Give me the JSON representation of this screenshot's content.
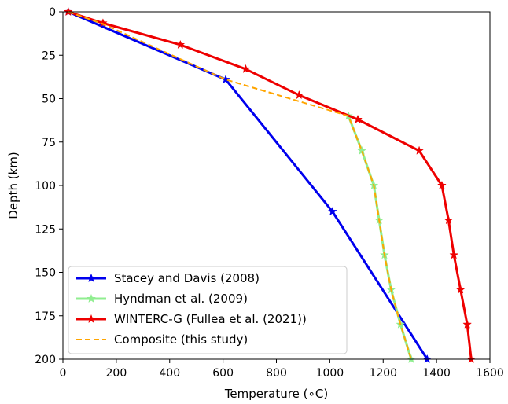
{
  "chart_data": {
    "type": "line",
    "title": "",
    "xlabel": "Temperature (∘C)",
    "ylabel": "Depth (km)",
    "xlim": [
      0,
      1600
    ],
    "ylim": [
      200,
      0
    ],
    "y_inverted": true,
    "xticks": [
      "0",
      "200",
      "400",
      "600",
      "800",
      "1000",
      "1200",
      "1400",
      "1600"
    ],
    "yticks": [
      "0",
      "25",
      "50",
      "75",
      "100",
      "125",
      "150",
      "175",
      "200"
    ],
    "grid": false,
    "legend_position": "bottom-left",
    "series": [
      {
        "name": "Stacey and Davis (2008)",
        "color": "#0000ee",
        "style": "solid",
        "marker": "star",
        "x": [
          20,
          610,
          1010,
          1365
        ],
        "y": [
          0,
          39,
          115,
          200
        ]
      },
      {
        "name": "Hyndman et al. (2009)",
        "color": "#90ee90",
        "style": "solid",
        "marker": "star",
        "x": [
          1070,
          1120,
          1165,
          1185,
          1205,
          1230,
          1265,
          1305
        ],
        "y": [
          60,
          80,
          100,
          120,
          140,
          160,
          180,
          200
        ]
      },
      {
        "name": "WINTERC-G (Fullea et al. (2021))",
        "color": "#ee0000",
        "style": "solid",
        "marker": "star",
        "x": [
          20,
          150,
          440,
          685,
          885,
          1105,
          1335,
          1420,
          1445,
          1465,
          1490,
          1515,
          1530
        ],
        "y": [
          0,
          6.5,
          19,
          33,
          48,
          62,
          80,
          100,
          120,
          140,
          160,
          180,
          200
        ]
      },
      {
        "name": "Composite (this study)",
        "color": "#ffa500",
        "style": "dashed",
        "marker": "none",
        "x": [
          20,
          150,
          610,
          1070,
          1120,
          1165,
          1185,
          1205,
          1230,
          1265,
          1305
        ],
        "y": [
          0,
          7,
          39,
          60,
          80,
          100,
          120,
          140,
          160,
          180,
          200
        ]
      }
    ]
  }
}
